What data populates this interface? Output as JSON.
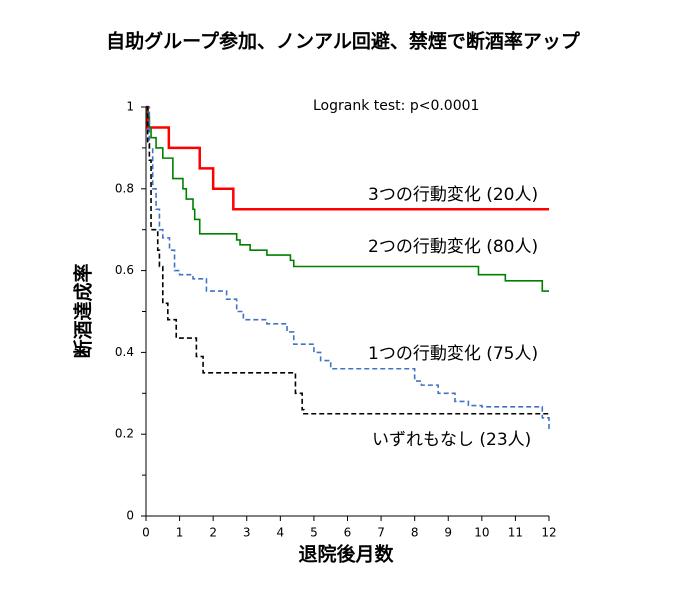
{
  "chart_data": {
    "type": "step",
    "title": "自助グループ参加、ノンアル回避、禁煙で断酒率アップ",
    "annotation": "Logrank test:  p<0.0001",
    "x_label": "退院後月数",
    "y_label": "断酒達成率",
    "xlim": [
      0,
      12
    ],
    "xticks": [
      0,
      1,
      2,
      3,
      4,
      5,
      6,
      7,
      8,
      9,
      10,
      11,
      12
    ],
    "ylim": [
      0,
      1
    ],
    "yticks": [
      0,
      0.2,
      0.4,
      0.6,
      0.8,
      1
    ],
    "yminorticks": [
      0.1,
      0.3,
      0.5,
      0.7,
      0.9
    ],
    "series": [
      {
        "name": "3つの行動変化 (20人)",
        "color": "#ff0000",
        "dash": false,
        "x": [
          0,
          0.05,
          0.68,
          1.6,
          2.0,
          2.6,
          12
        ],
        "values": [
          1,
          0.95,
          0.9,
          0.85,
          0.8,
          0.75,
          0.75
        ]
      },
      {
        "name": "2つの行動変化 (80人)",
        "color": "#008000",
        "dash": false,
        "x": [
          0,
          0.05,
          0.1,
          0.15,
          0.3,
          0.5,
          0.8,
          1.1,
          1.2,
          1.4,
          1.45,
          1.6,
          2.7,
          2.8,
          3.1,
          3.6,
          4.3,
          4.4,
          9.9,
          10.7,
          11.8,
          12
        ],
        "values": [
          1,
          0.975,
          0.95,
          0.925,
          0.9,
          0.875,
          0.825,
          0.8,
          0.775,
          0.75,
          0.725,
          0.69,
          0.675,
          0.663,
          0.65,
          0.638,
          0.625,
          0.61,
          0.59,
          0.575,
          0.55,
          0.55
        ]
      },
      {
        "name": "1つの行動変化 (75人)",
        "color": "#4472c4",
        "dash": true,
        "x": [
          0,
          0.1,
          0.2,
          0.3,
          0.4,
          0.5,
          0.7,
          0.85,
          1.0,
          1.4,
          1.8,
          2.4,
          2.7,
          2.9,
          3.6,
          4.2,
          4.4,
          5.0,
          5.2,
          5.5,
          8.0,
          8.2,
          8.7,
          9.2,
          9.6,
          10.0,
          11.8,
          12
        ],
        "values": [
          1,
          0.9,
          0.8,
          0.75,
          0.7,
          0.68,
          0.65,
          0.6,
          0.59,
          0.58,
          0.55,
          0.53,
          0.5,
          0.48,
          0.47,
          0.45,
          0.42,
          0.4,
          0.38,
          0.36,
          0.33,
          0.32,
          0.3,
          0.28,
          0.27,
          0.267,
          0.24,
          0.21
        ]
      },
      {
        "name": "いずれもなし (23人)",
        "color": "#000000",
        "dash": true,
        "x": [
          0,
          0.05,
          0.1,
          0.15,
          0.35,
          0.4,
          0.5,
          0.65,
          0.9,
          1.5,
          1.7,
          4.45,
          4.65,
          4.7,
          12
        ],
        "values": [
          1,
          0.91,
          0.87,
          0.7,
          0.65,
          0.61,
          0.52,
          0.48,
          0.435,
          0.39,
          0.35,
          0.3,
          0.26,
          0.25,
          0.25
        ]
      }
    ]
  }
}
